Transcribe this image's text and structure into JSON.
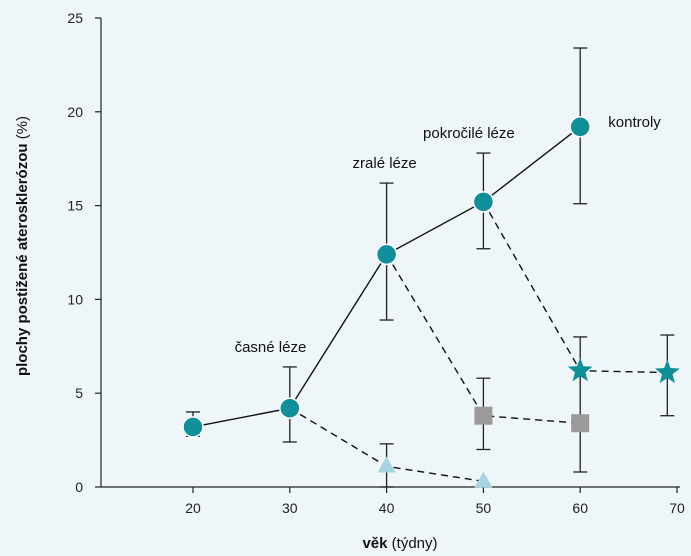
{
  "chart_data": {
    "type": "line",
    "xlabel_bold": "věk",
    "xlabel_rest": " (týdny)",
    "ylabel_bold": "plochy postižené aterosklerózou",
    "ylabel_rest": " (%)",
    "xlim": [
      10,
      70
    ],
    "ylim": [
      0,
      25
    ],
    "xticks": [
      20,
      30,
      40,
      50,
      60,
      70
    ],
    "yticks": [
      0,
      5,
      10,
      15,
      20,
      25
    ],
    "grid": false,
    "colors": {
      "circle": "#0e8f99",
      "star": "#0e8f99",
      "square": "#9a9a9a",
      "triangle": "#a6d4e2",
      "line": "#111111",
      "errorbar": "#222222"
    },
    "series": [
      {
        "marker": "circle",
        "dash": "solid",
        "points": [
          {
            "x": 20,
            "y": 3.2,
            "lo": 2.7,
            "hi": 4.0
          },
          {
            "x": 30,
            "y": 4.2,
            "lo": 2.4,
            "hi": 6.4
          },
          {
            "x": 40,
            "y": 12.4,
            "lo": 8.9,
            "hi": 16.2
          },
          {
            "x": 50,
            "y": 15.2,
            "lo": 12.7,
            "hi": 17.8
          },
          {
            "x": 60,
            "y": 19.2,
            "lo": 15.1,
            "hi": 23.4
          }
        ]
      },
      {
        "marker": "triangle",
        "dash": "dashed",
        "points": [
          {
            "x": 30,
            "y": 4.2
          },
          {
            "x": 40,
            "y": 1.1,
            "lo": 0.0,
            "hi": 2.3
          },
          {
            "x": 50,
            "y": 0.3
          }
        ]
      },
      {
        "marker": "square",
        "dash": "dashed",
        "points": [
          {
            "x": 40,
            "y": 12.4
          },
          {
            "x": 50,
            "y": 3.8,
            "lo": 2.0,
            "hi": 5.8
          },
          {
            "x": 60,
            "y": 3.4,
            "lo": 0.8,
            "hi": 8.0
          }
        ]
      },
      {
        "marker": "star",
        "dash": "dashed",
        "points": [
          {
            "x": 50,
            "y": 15.2
          },
          {
            "x": 60,
            "y": 6.2
          },
          {
            "x": 69,
            "y": 6.1,
            "lo": 3.8,
            "hi": 8.1
          }
        ]
      }
    ],
    "annotations": [
      {
        "text": "časné léze",
        "x": 28,
        "y": 7.2,
        "anchor": "middle"
      },
      {
        "text": "zralé léze",
        "x": 39.8,
        "y": 17.0,
        "anchor": "middle"
      },
      {
        "text": "pokročilé léze",
        "x": 48.5,
        "y": 18.6,
        "anchor": "middle"
      },
      {
        "text": "kontroly",
        "x": 62.9,
        "y": 19.2,
        "anchor": "start"
      }
    ]
  }
}
